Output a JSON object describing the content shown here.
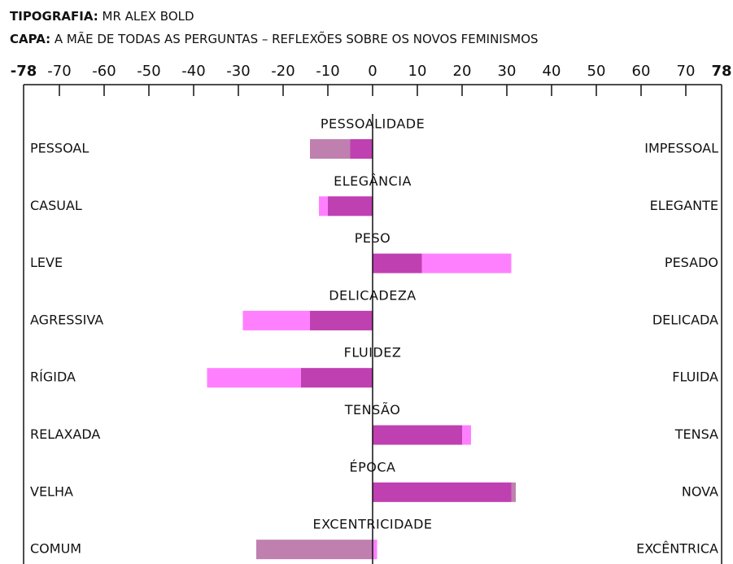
{
  "chart_data": {
    "type": "diverging-bar",
    "title_label": "TIPOGRAFIA:",
    "title": "MR ALEX BOLD",
    "subtitle_label": "CAPA:",
    "subtitle": "A MÃE DE TODAS AS PERGUNTAS – REFLEXÕES SOBRE OS NOVOS FEMINISMOS",
    "categories": [
      "PESSOALIDADE",
      "ELEGÂNCIA",
      "PESO",
      "DELICADEZA",
      "FLUIDEZ",
      "TENSÃO",
      "ÉPOCA",
      "EXCENTRICIDADE"
    ],
    "left_labels": [
      "PESSOAL",
      "CASUAL",
      "LEVE",
      "AGRESSIVA",
      "RÍGIDA",
      "RELAXADA",
      "VELHA",
      "COMUM"
    ],
    "right_labels": [
      "IMPESSOAL",
      "ELEGANTE",
      "PESADO",
      "DELICADA",
      "FLUIDA",
      "TENSA",
      "NOVA",
      "EXCÊNTRICA"
    ],
    "series": [
      {
        "color": "#bf80b0",
        "values": [
          -14,
          -10,
          11,
          -14,
          -16,
          20,
          32,
          -26
        ]
      },
      {
        "color": "#ff80ff",
        "values": [
          -5,
          -12,
          31,
          -29,
          -37,
          22,
          31,
          1
        ]
      }
    ],
    "xlim": [
      -78,
      78
    ],
    "xticks": [
      -78,
      -70,
      -60,
      -50,
      -40,
      -30,
      -20,
      -10,
      0,
      10,
      20,
      30,
      40,
      50,
      60,
      70,
      78
    ]
  }
}
